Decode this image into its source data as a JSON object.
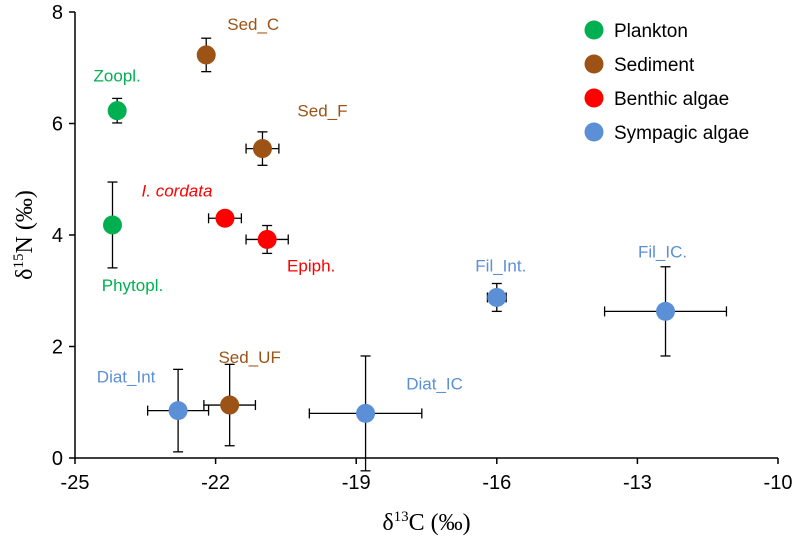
{
  "chart_data": {
    "type": "scatter",
    "xlabel": "δ13C (‰)",
    "ylabel": "δ15N (‰)",
    "xlim": [
      -25,
      -10
    ],
    "ylim": [
      0,
      8
    ],
    "x_ticks": [
      -25,
      -22,
      -19,
      -16,
      -13,
      -10
    ],
    "y_ticks": [
      0,
      2,
      4,
      6,
      8
    ],
    "grid": false,
    "legend_position": "top-right",
    "series": [
      {
        "name": "Plankton",
        "color": "#00b050",
        "points": [
          {
            "label": "Zoopl.",
            "x": -24.1,
            "y": 6.23,
            "xerr": 0,
            "yerr": 0.22
          },
          {
            "label": "Phytopl.",
            "x": -24.2,
            "y": 4.18,
            "xerr": 0,
            "yerr": 0.77
          }
        ]
      },
      {
        "name": "Sediment",
        "color": "#9c5315",
        "points": [
          {
            "label": "Sed_C",
            "x": -22.2,
            "y": 7.23,
            "xerr": 0,
            "yerr": 0.3
          },
          {
            "label": "Sed_F",
            "x": -21.0,
            "y": 5.55,
            "xerr": 0.35,
            "yerr": 0.3
          },
          {
            "label": "Sed_UF",
            "x": -21.7,
            "y": 0.95,
            "xerr": 0.55,
            "yerr": 0.73
          }
        ]
      },
      {
        "name": "Benthic algae",
        "color": "#ff0000",
        "points": [
          {
            "label": "I. cordata",
            "italic": true,
            "x": -21.8,
            "y": 4.3,
            "xerr": 0.35,
            "yerr": 0
          },
          {
            "label": "Epiph.",
            "x": -20.9,
            "y": 3.92,
            "xerr": 0.45,
            "yerr": 0.25
          }
        ]
      },
      {
        "name": "Sympagic algae",
        "color": "#5b8fd6",
        "points": [
          {
            "label": "Diat_Int",
            "x": -22.8,
            "y": 0.85,
            "xerr": 0.65,
            "yerr": 0.74
          },
          {
            "label": "Diat_IC",
            "x": -18.8,
            "y": 0.8,
            "xerr": 1.2,
            "yerr": 1.03
          },
          {
            "label": "Fil_Int.",
            "x": -16.0,
            "y": 2.88,
            "xerr": 0.2,
            "yerr": 0.25
          },
          {
            "label": "Fil_IC.",
            "x": -12.4,
            "y": 2.63,
            "xerr": 1.3,
            "yerr": 0.8
          }
        ]
      }
    ]
  }
}
